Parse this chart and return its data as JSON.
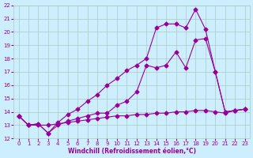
{
  "xlabel": "Windchill (Refroidissement éolien,°C)",
  "bg_color": "#cceeff",
  "grid_color": "#aaccbb",
  "line_color": "#990099",
  "xlim": [
    -0.5,
    23.5
  ],
  "ylim": [
    12,
    22
  ],
  "xticks": [
    0,
    1,
    2,
    3,
    4,
    5,
    6,
    7,
    8,
    9,
    10,
    11,
    12,
    13,
    14,
    15,
    16,
    17,
    18,
    19,
    20,
    21,
    22,
    23
  ],
  "yticks": [
    12,
    13,
    14,
    15,
    16,
    17,
    18,
    19,
    20,
    21,
    22
  ],
  "line1_x": [
    0,
    1,
    2,
    3,
    4,
    5,
    6,
    7,
    8,
    9,
    10,
    11,
    12,
    13,
    14,
    15,
    16,
    17,
    18,
    19,
    20,
    21,
    22,
    23
  ],
  "line1_y": [
    13.7,
    13.0,
    13.0,
    13.0,
    13.1,
    13.2,
    13.3,
    13.4,
    13.5,
    13.6,
    13.7,
    13.7,
    13.8,
    13.8,
    13.9,
    13.9,
    14.0,
    14.0,
    14.1,
    14.1,
    14.0,
    13.9,
    14.1,
    14.2
  ],
  "line2_x": [
    0,
    1,
    2,
    3,
    4,
    5,
    6,
    7,
    8,
    9,
    10,
    11,
    12,
    13,
    14,
    15,
    16,
    17,
    18,
    19,
    20,
    21,
    22,
    23
  ],
  "line2_y": [
    13.7,
    13.0,
    13.1,
    12.4,
    13.0,
    13.3,
    13.5,
    13.7,
    13.9,
    13.9,
    14.5,
    14.8,
    15.5,
    17.5,
    17.3,
    17.5,
    18.5,
    17.3,
    19.4,
    19.5,
    17.0,
    14.0,
    14.1,
    14.2
  ],
  "line3_x": [
    0,
    1,
    2,
    3,
    4,
    5,
    6,
    7,
    8,
    9,
    10,
    11,
    12,
    13,
    14,
    15,
    16,
    17,
    18,
    19,
    20,
    21,
    22,
    23
  ],
  "line3_y": [
    13.7,
    13.0,
    13.1,
    12.4,
    13.2,
    13.8,
    14.2,
    14.8,
    15.3,
    16.0,
    16.5,
    17.1,
    17.5,
    18.0,
    20.3,
    20.6,
    20.6,
    20.3,
    21.7,
    20.2,
    17.0,
    14.0,
    14.1,
    14.2
  ]
}
